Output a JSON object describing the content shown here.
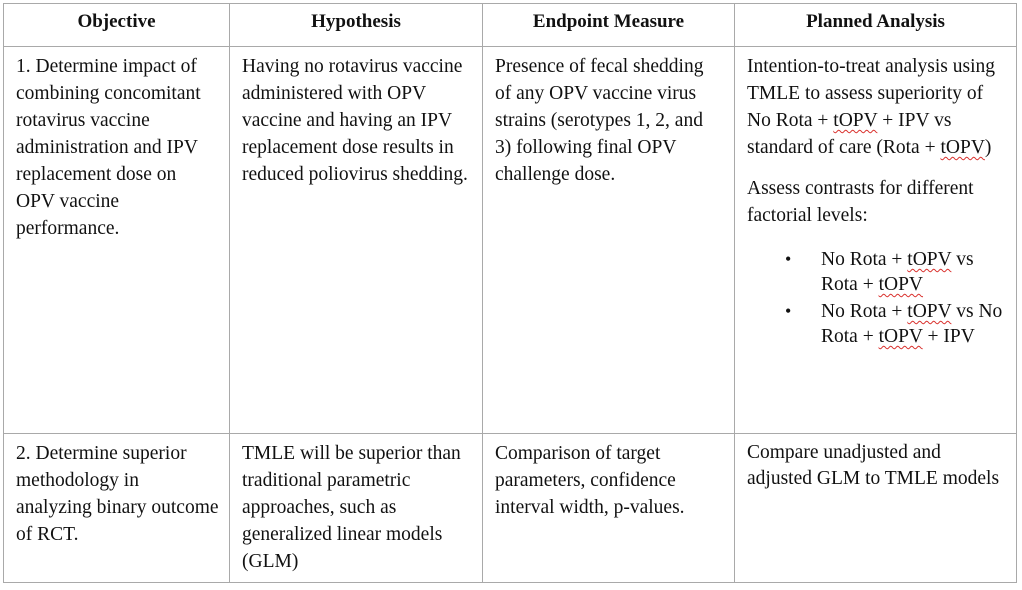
{
  "headers": {
    "objective": "Objective",
    "hypothesis": "Hypothesis",
    "endpoint": "Endpoint Measure",
    "analysis": "Planned Analysis"
  },
  "row1": {
    "objective": "1. Determine impact of combining concomitant rotavirus vaccine administration and IPV replacement dose on OPV vaccine performance.",
    "hypothesis": "Having no rotavirus vaccine administered with OPV vaccine and having an IPV replacement dose results in reduced poliovirus shedding.",
    "endpoint": "Presence of fecal shedding of any OPV vaccine virus strains (serotypes 1, 2, and 3) following final OPV challenge dose.",
    "analysis": {
      "p1_a": "Intention-to-treat analysis using TMLE to assess superiority of No Rota + ",
      "topv": "tOPV",
      "p1_b": " + IPV vs standard of care (Rota + ",
      "p1_c": ")",
      "p2": "Assess contrasts for different factorial levels:",
      "bullet_glyph": "•",
      "b1_a": "No Rota + ",
      "b1_b": " vs Rota + ",
      "b2_a": "No Rota + ",
      "b2_b": " vs No Rota + ",
      "b2_c": " + IPV"
    }
  },
  "row2": {
    "objective": "2. Determine superior methodology in analyzing binary outcome of RCT.",
    "hypothesis": "TMLE will be superior than traditional parametric approaches, such as generalized linear models (GLM)",
    "endpoint": "Comparison of target parameters, confidence interval width, p-values.",
    "analysis": "Compare unadjusted and adjusted GLM to TMLE models"
  }
}
